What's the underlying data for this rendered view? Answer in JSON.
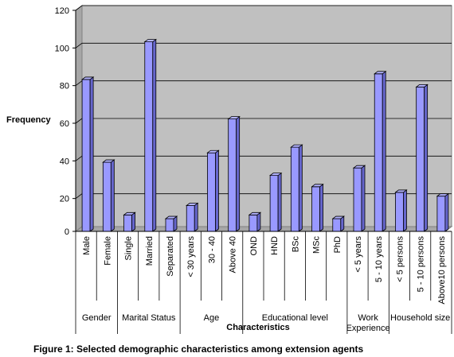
{
  "chart_data": {
    "type": "bar",
    "title": "",
    "caption": "Figure 1: Selected demographic  characteristics among extension agents",
    "xlabel": "Characteristics",
    "ylabel": "Frequency",
    "ylim": [
      0,
      120
    ],
    "yticks": [
      "0",
      "20",
      "40",
      "60",
      "80",
      "100",
      "120"
    ],
    "grid": true,
    "legend": "none",
    "bar_color": "#9999ff",
    "plot_background": "#c0c0c0",
    "categories": [
      "Male",
      "Female",
      "Single",
      "Married",
      "Separated",
      "< 30 years",
      "30 - 40",
      "Above 40",
      "OND",
      "HND",
      "BSc",
      "MSc",
      "PhD",
      "< 5 years",
      "5 - 10 years",
      "< 5 persons",
      "5 - 10 persons",
      "Above10 persons"
    ],
    "values": [
      82,
      38,
      10,
      102,
      8,
      15,
      43,
      61,
      10,
      31,
      46,
      25,
      8,
      35,
      85,
      22,
      78,
      20
    ],
    "groups": [
      {
        "label": "Gender",
        "categories": [
          "Male",
          "Female"
        ]
      },
      {
        "label": "Marital Status",
        "categories": [
          "Single",
          "Married",
          "Separated"
        ]
      },
      {
        "label": "Age",
        "categories": [
          "< 30 years",
          "30 - 40",
          "Above 40"
        ]
      },
      {
        "label": "Educational level",
        "categories": [
          "OND",
          "HND",
          "BSc",
          "MSc",
          "PhD"
        ]
      },
      {
        "label": "Work Experience",
        "lines": [
          "Work",
          "Experience"
        ],
        "categories": [
          "< 5 years",
          "5 - 10 years"
        ]
      },
      {
        "label": "Household size",
        "categories": [
          "< 5 persons",
          "5 - 10 persons",
          "Above10 persons"
        ]
      }
    ]
  }
}
